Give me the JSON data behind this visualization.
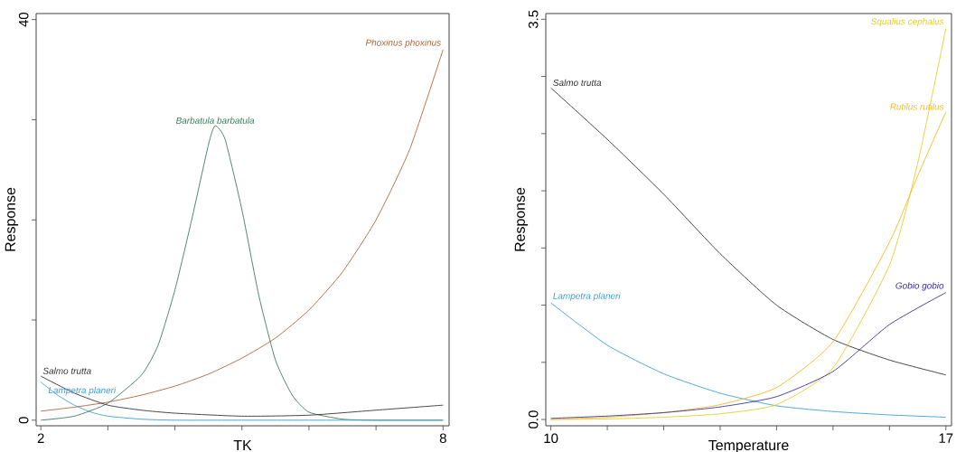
{
  "chart_data": [
    {
      "type": "line",
      "xlabel": "TK",
      "ylabel": "Response",
      "xlim": [
        1.93,
        8.09
      ],
      "ylim": [
        -0.56,
        40.6
      ],
      "xticks": [
        2,
        {
          "value": 3,
          "label": null
        },
        {
          "value": 4,
          "label": null
        },
        {
          "value": 5,
          "label": null
        },
        {
          "value": 6,
          "label": null
        },
        {
          "value": 7,
          "label": null
        },
        8
      ],
      "yticks": [
        0,
        {
          "value": 10,
          "label": null
        },
        {
          "value": 20,
          "label": null
        },
        {
          "value": 30,
          "label": null
        },
        40
      ],
      "grid": false,
      "line_style": "solid",
      "marker": "none",
      "ref_lines": [
        {
          "axis": "y",
          "value": 0,
          "color": "#cccccc",
          "line_style": "dotted"
        }
      ],
      "series": [
        {
          "name": "Phoxinus phoxinus",
          "color": "#b0643a",
          "x": [
            2,
            2.5,
            3,
            3.5,
            4,
            4.5,
            5,
            5.5,
            6,
            6.5,
            7,
            7.5,
            8
          ],
          "values": [
            0.9,
            1.3,
            1.8,
            2.5,
            3.4,
            4.6,
            6.2,
            8.2,
            11.0,
            14.8,
            20.0,
            27.0,
            37.0
          ]
        },
        {
          "name": "Barbatula barbatula",
          "color": "#3d7a5a",
          "x": [
            2,
            2.5,
            3,
            3.5,
            3.75,
            4,
            4.25,
            4.5,
            4.6,
            4.75,
            5,
            5.25,
            5.5,
            5.75,
            6,
            6.5,
            7,
            8
          ],
          "values": [
            0,
            0.4,
            1.7,
            4.5,
            7.5,
            13,
            20,
            27.5,
            29.4,
            28,
            21,
            12.5,
            6,
            2.5,
            0.8,
            0.1,
            0,
            0
          ]
        },
        {
          "name": "Salmo trutta",
          "color": "#333333",
          "x": [
            2,
            2.5,
            3,
            3.5,
            4,
            5,
            6,
            7,
            8
          ],
          "values": [
            4.4,
            2.7,
            1.5,
            1.0,
            0.7,
            0.4,
            0.5,
            1.0,
            1.5
          ]
        },
        {
          "name": "Lampetra planeri",
          "color": "#3aa0d0",
          "x": [
            2,
            2.25,
            2.5,
            2.75,
            3,
            3.5,
            4,
            5,
            8
          ],
          "values": [
            3.8,
            2.5,
            1.5,
            0.8,
            0.4,
            0.1,
            0,
            0,
            0
          ]
        }
      ]
    },
    {
      "type": "line",
      "xlabel": "Temperature",
      "ylabel": "Response",
      "xlim": [
        9.91,
        17.1
      ],
      "ylim": [
        -0.055,
        3.55
      ],
      "xticks": [
        10,
        {
          "value": 11,
          "label": null
        },
        {
          "value": 12,
          "label": null
        },
        {
          "value": 13,
          "label": null
        },
        {
          "value": 14,
          "label": null
        },
        {
          "value": 15,
          "label": null
        },
        {
          "value": 16,
          "label": null
        },
        17
      ],
      "yticks": [
        {
          "value": 0,
          "label": "0.0"
        },
        {
          "value": 0.5,
          "label": null
        },
        {
          "value": 1,
          "label": null
        },
        {
          "value": 1.5,
          "label": null
        },
        {
          "value": 2,
          "label": null
        },
        {
          "value": 2.5,
          "label": null
        },
        {
          "value": 3,
          "label": null
        },
        3.5
      ],
      "grid": false,
      "line_style": "solid",
      "marker": "none",
      "ref_lines": [
        {
          "axis": "y",
          "value": 0,
          "color": "#cccccc",
          "line_style": "dotted"
        }
      ],
      "series": [
        {
          "name": "Salmo trutta",
          "color": "#333333",
          "x": [
            10,
            11,
            12,
            13,
            14,
            15,
            16,
            17
          ],
          "values": [
            2.9,
            2.45,
            1.97,
            1.45,
            1.0,
            0.7,
            0.52,
            0.39
          ]
        },
        {
          "name": "Lampetra planeri",
          "color": "#3aa0d0",
          "x": [
            10,
            11,
            12,
            13,
            14,
            15,
            16,
            17
          ],
          "values": [
            1.02,
            0.65,
            0.4,
            0.23,
            0.12,
            0.07,
            0.04,
            0.02
          ]
        },
        {
          "name": "Squalius cephalus",
          "color": "#e3cf2a",
          "x": [
            10,
            11,
            12,
            13,
            14,
            15,
            16,
            16.5,
            17
          ],
          "values": [
            0,
            0.005,
            0.02,
            0.05,
            0.13,
            0.45,
            1.35,
            2.24,
            3.42
          ]
        },
        {
          "name": "Rutilus rutilus",
          "color": "#f5b820",
          "x": [
            10,
            11,
            12,
            13,
            14,
            15,
            16,
            16.5,
            17
          ],
          "values": [
            0,
            0.02,
            0.06,
            0.13,
            0.28,
            0.68,
            1.55,
            2.13,
            2.69
          ]
        },
        {
          "name": "Gobio gobio",
          "color": "#3a2f9e",
          "x": [
            10,
            11,
            12,
            13,
            14,
            15,
            16,
            17
          ],
          "values": [
            0.01,
            0.03,
            0.06,
            0.11,
            0.2,
            0.42,
            0.83,
            1.11
          ]
        }
      ]
    }
  ]
}
